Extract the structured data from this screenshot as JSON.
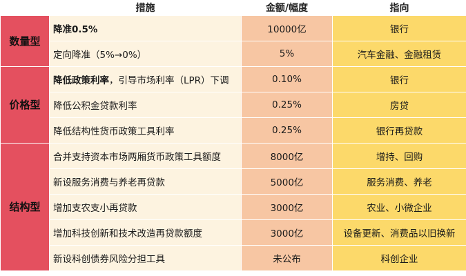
{
  "headers": {
    "measure": "措施",
    "amount": "金额/幅度",
    "target": "指向"
  },
  "colors": {
    "category": "#e4505f",
    "measure": "#fdf3e0",
    "amount": "#f7c6a3",
    "target": "#fcd96a"
  },
  "rows": [
    {
      "measure": "降准0.5%",
      "amount": "10000亿",
      "target": "银行"
    },
    {
      "measure": "定向降准（5%→0%）",
      "amount": "5%",
      "target": "汽车金融、金融租赁"
    },
    {
      "measure_bold": "降低政策利率",
      "measure_rest": "，引导市场利率（LPR）下调",
      "amount": "0.10%",
      "target": "银行"
    },
    {
      "measure": "降低公积金贷款利率",
      "amount": "0.25%",
      "target": "房贷"
    },
    {
      "measure": "降低结构性货币政策工具利率",
      "amount": "0.25%",
      "target": "银行再贷款"
    },
    {
      "measure": "合并支持资本市场两厢货币政策工具额度",
      "amount": "8000亿",
      "target": "增持、回购"
    },
    {
      "measure": "新设服务消费与养老再贷款",
      "amount": "5000亿",
      "target": "服务消费、养老"
    },
    {
      "measure": "增加支农支小再贷款",
      "amount": "3000亿",
      "target": "农业、小微企业"
    },
    {
      "measure": "增加科技创新和技术改造再贷款额度",
      "amount": "3000亿",
      "target": "设备更新、消费品以旧换新"
    },
    {
      "measure": "新设科创债券风险分担工具",
      "amount": "未公布",
      "target": "科创企业"
    }
  ],
  "categories": {
    "quantity": "数量型",
    "price": "价格型",
    "structural": "结构型"
  }
}
